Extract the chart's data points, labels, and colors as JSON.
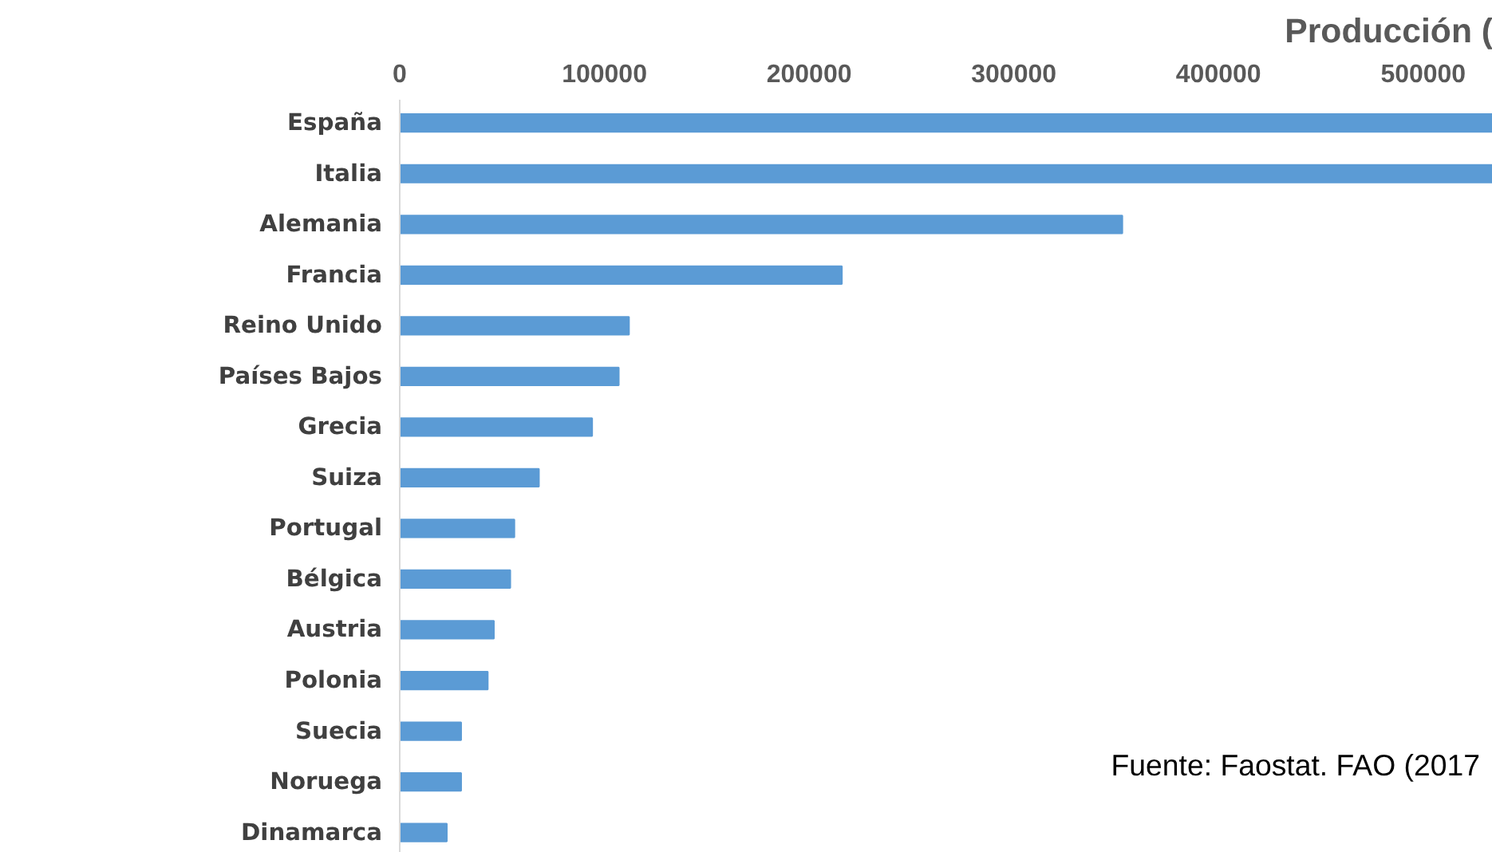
{
  "chart_data": {
    "type": "bar",
    "orientation": "horizontal",
    "title": "Producción (",
    "categories": [
      "España",
      "Italia",
      "Alemania",
      "Francia",
      "Reino Unido",
      "Países Bajos",
      "Grecia",
      "Suiza",
      "Portugal",
      "Bélgica",
      "Austria",
      "Polonia",
      "Suecia",
      "Noruega",
      "Dinamarca"
    ],
    "values": [
      534000,
      534000,
      353000,
      216000,
      112000,
      107000,
      94000,
      68000,
      56000,
      54000,
      46000,
      43000,
      30000,
      30000,
      23000
    ],
    "color": "#5b9bd5",
    "xlim": [
      0,
      534000
    ],
    "xticks": [
      0,
      100000,
      200000,
      300000,
      400000,
      500000
    ],
    "grid": false,
    "annotations": [
      "Fuente: Faostat. FAO (2017"
    ]
  }
}
